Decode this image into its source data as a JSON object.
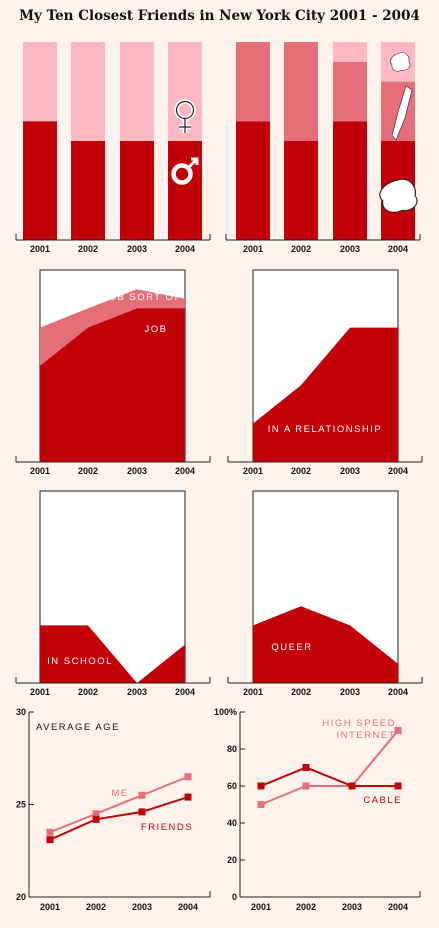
{
  "title": "My Ten Closest Friends in New York City 2001 - 2004",
  "colors": {
    "dark": "#c20008",
    "mid": "#e56e78",
    "light": "#fdb8c2",
    "white": "#ffffff",
    "background": "#fdf3ec",
    "axis": "#222222"
  },
  "chart_data": [
    {
      "id": "gender",
      "type": "bar",
      "stacked": true,
      "categories": [
        "2001",
        "2002",
        "2003",
        "2004"
      ],
      "series": [
        {
          "name": "",
          "icon": "male-symbol-icon",
          "values": [
            6,
            5,
            5,
            5
          ]
        },
        {
          "name": "",
          "icon": "female-symbol-icon",
          "values": [
            4,
            5,
            5,
            5
          ]
        }
      ],
      "ylim": [
        0,
        10
      ]
    },
    {
      "id": "boroughs",
      "type": "bar",
      "stacked": true,
      "categories": [
        "2001",
        "2002",
        "2003",
        "2004"
      ],
      "series": [
        {
          "name": "",
          "icon": "brooklyn-map-icon",
          "values": [
            6,
            5,
            6,
            5
          ]
        },
        {
          "name": "",
          "icon": "manhattan-map-icon",
          "values": [
            4,
            5,
            3,
            3
          ]
        },
        {
          "name": "",
          "icon": "queens-map-icon",
          "values": [
            0,
            0,
            1,
            2
          ]
        }
      ],
      "ylim": [
        0,
        10
      ]
    },
    {
      "id": "job",
      "type": "area",
      "stacked": true,
      "categories": [
        "2001",
        "2002",
        "2003",
        "2004"
      ],
      "series": [
        {
          "name": "JOB",
          "values": [
            5,
            7,
            8,
            8
          ]
        },
        {
          "name": "JOB SORT OF",
          "values": [
            2,
            1,
            1,
            0.5
          ]
        }
      ],
      "ylim": [
        0,
        10
      ]
    },
    {
      "id": "relationship",
      "type": "area",
      "categories": [
        "2001",
        "2002",
        "2003",
        "2004"
      ],
      "series": [
        {
          "name": "IN A RELATIONSHIP",
          "values": [
            2,
            4,
            7,
            7
          ]
        }
      ],
      "ylim": [
        0,
        10
      ]
    },
    {
      "id": "school",
      "type": "area",
      "categories": [
        "2001",
        "2002",
        "2003",
        "2004"
      ],
      "series": [
        {
          "name": "IN SCHOOL",
          "values": [
            3,
            3,
            0,
            2
          ]
        }
      ],
      "ylim": [
        0,
        10
      ]
    },
    {
      "id": "queer",
      "type": "area",
      "categories": [
        "2001",
        "2002",
        "2003",
        "2004"
      ],
      "series": [
        {
          "name": "QUEER",
          "values": [
            3,
            4,
            3,
            1
          ]
        }
      ],
      "ylim": [
        0,
        10
      ]
    },
    {
      "id": "age",
      "type": "line",
      "title": "AVERAGE AGE",
      "categories": [
        "2001",
        "2002",
        "2003",
        "2004"
      ],
      "yticks": [
        "20",
        "25",
        "30"
      ],
      "series": [
        {
          "name": "ME",
          "values": [
            23.5,
            24.5,
            25.5,
            26.5
          ]
        },
        {
          "name": "FRIENDS",
          "values": [
            23.1,
            24.2,
            24.6,
            25.4
          ]
        }
      ],
      "ylim": [
        20,
        30
      ]
    },
    {
      "id": "internet",
      "type": "line",
      "categories": [
        "2001",
        "2002",
        "2003",
        "2004"
      ],
      "yticks": [
        "0",
        "20",
        "40",
        "60",
        "80",
        "100%"
      ],
      "series": [
        {
          "name": "HIGH SPEED INTERNET",
          "label_lines": [
            "HIGH SPEED",
            "INTERNET"
          ],
          "values": [
            50,
            60,
            60,
            90
          ]
        },
        {
          "name": "CABLE",
          "values": [
            60,
            70,
            60,
            60
          ]
        }
      ],
      "ylim": [
        0,
        100
      ]
    }
  ]
}
